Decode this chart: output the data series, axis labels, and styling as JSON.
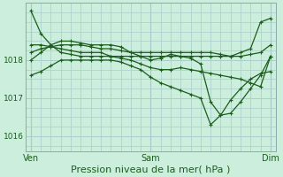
{
  "background_color": "#cceedd",
  "grid_color": "#aacccc",
  "line_color": "#1a5e1a",
  "marker": "+",
  "markersize": 3,
  "linewidth": 0.9,
  "xlabel": "Pression niveau de la mer( hPa )",
  "xlabel_fontsize": 8,
  "ytick_labels": [
    "1016",
    "1017",
    "1018"
  ],
  "ytick_positions": [
    1016,
    1017,
    1018
  ],
  "xtick_labels": [
    "Ven",
    "Sam",
    "Dim"
  ],
  "xtick_positions": [
    0,
    48,
    96
  ],
  "xlim": [
    -2,
    98
  ],
  "ylim": [
    1015.6,
    1019.5
  ],
  "series": [
    {
      "x": [
        0,
        4,
        8,
        12,
        16,
        20,
        24,
        28,
        32,
        36,
        40,
        44,
        48,
        52,
        56,
        60,
        64,
        68,
        72,
        76,
        80,
        84,
        88,
        92,
        96
      ],
      "y": [
        1019.3,
        1018.7,
        1018.4,
        1018.2,
        1018.15,
        1018.1,
        1018.1,
        1018.1,
        1018.1,
        1018.1,
        1018.1,
        1018.1,
        1018.1,
        1018.1,
        1018.1,
        1018.1,
        1018.1,
        1018.1,
        1018.1,
        1018.1,
        1018.1,
        1018.2,
        1018.3,
        1019.0,
        1019.1
      ]
    },
    {
      "x": [
        0,
        4,
        8,
        12,
        16,
        20,
        24,
        28,
        32,
        36,
        40,
        44,
        48,
        52,
        56,
        60,
        64,
        68,
        72,
        76,
        80,
        84,
        88,
        92,
        96
      ],
      "y": [
        1018.2,
        1018.3,
        1018.35,
        1018.4,
        1018.4,
        1018.4,
        1018.35,
        1018.3,
        1018.3,
        1018.25,
        1018.2,
        1018.2,
        1018.2,
        1018.2,
        1018.2,
        1018.2,
        1018.2,
        1018.2,
        1018.2,
        1018.15,
        1018.1,
        1018.1,
        1018.15,
        1018.2,
        1018.4
      ]
    },
    {
      "x": [
        0,
        4,
        8,
        12,
        16,
        20,
        24,
        28,
        32,
        36,
        40,
        44,
        48,
        52,
        56,
        60,
        64,
        68,
        72,
        76,
        80,
        84,
        88,
        92,
        96
      ],
      "y": [
        1018.4,
        1018.4,
        1018.35,
        1018.3,
        1018.25,
        1018.2,
        1018.2,
        1018.2,
        1018.1,
        1018.05,
        1018.0,
        1017.9,
        1017.8,
        1017.75,
        1017.75,
        1017.8,
        1017.75,
        1017.7,
        1017.65,
        1017.6,
        1017.55,
        1017.5,
        1017.4,
        1017.3,
        1018.1
      ]
    },
    {
      "x": [
        0,
        4,
        8,
        12,
        16,
        20,
        24,
        28,
        32,
        36,
        40,
        44,
        48,
        52,
        56,
        60,
        64,
        68,
        72,
        76,
        80,
        84,
        88,
        92,
        96
      ],
      "y": [
        1018.0,
        1018.2,
        1018.4,
        1018.5,
        1018.5,
        1018.45,
        1018.4,
        1018.4,
        1018.4,
        1018.35,
        1018.2,
        1018.1,
        1018.0,
        1018.05,
        1018.15,
        1018.1,
        1018.05,
        1017.9,
        1016.9,
        1016.55,
        1016.6,
        1016.9,
        1017.25,
        1017.6,
        1018.1
      ]
    },
    {
      "x": [
        0,
        4,
        8,
        12,
        16,
        20,
        24,
        28,
        32,
        36,
        40,
        44,
        48,
        52,
        56,
        60,
        64,
        68,
        72,
        76,
        80,
        84,
        88,
        92,
        96
      ],
      "y": [
        1017.6,
        1017.7,
        1017.85,
        1018.0,
        1018.0,
        1018.0,
        1018.0,
        1018.0,
        1018.0,
        1017.95,
        1017.85,
        1017.75,
        1017.55,
        1017.4,
        1017.3,
        1017.2,
        1017.1,
        1017.0,
        1016.3,
        1016.55,
        1016.95,
        1017.25,
        1017.5,
        1017.65,
        1017.7
      ]
    }
  ]
}
